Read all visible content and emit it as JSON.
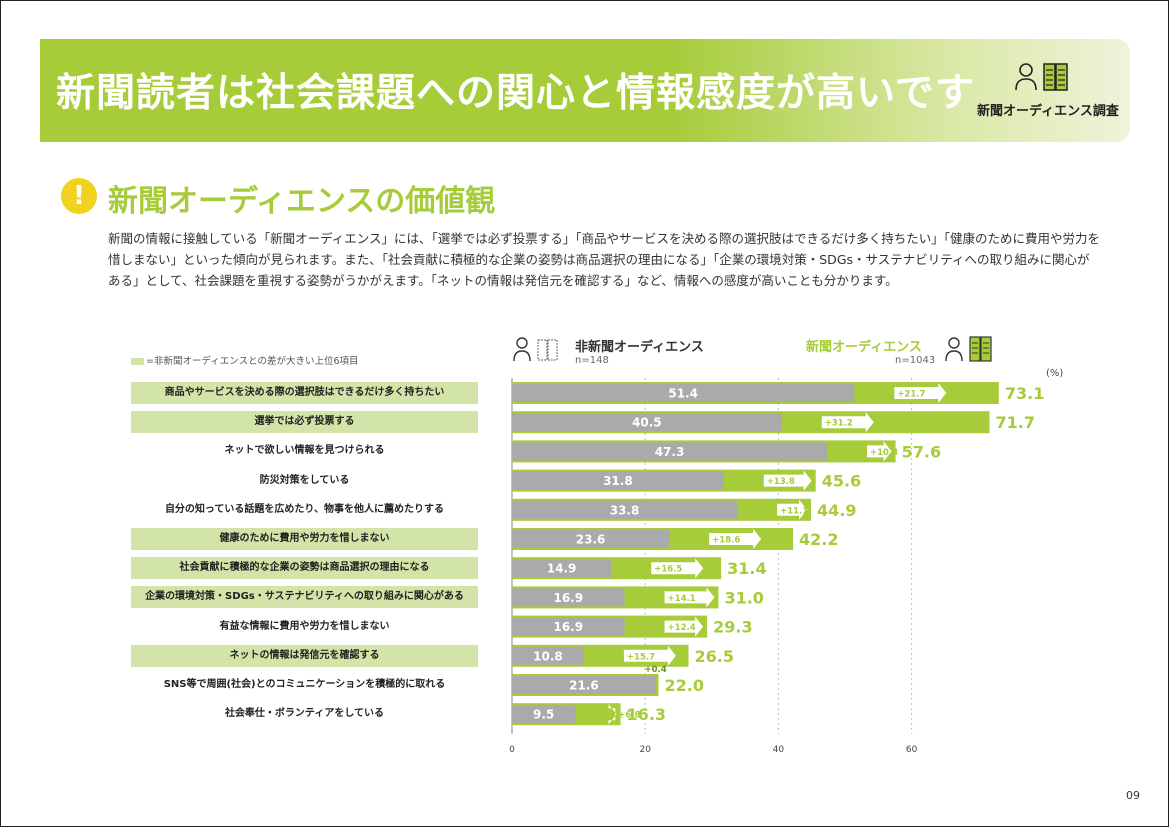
{
  "header": {
    "title": "新聞読者は社会課題への関心と情報感度が高いです",
    "brand_label": "新聞オーディエンス調査"
  },
  "section": {
    "title": "新聞オーディエンスの価値観",
    "description_lines": [
      "新聞の情報に接触している「新聞オーディエンス」には、「選挙では必ず投票する」「商品やサービスを決める際の選択肢はできるだけ多く持ちたい」「健康のために費用や労力を",
      "惜しまない」といった傾向が見られます。また、「社会貢献に積極的な企業の姿勢は商品選択の理由になる」「企業の環境対策・SDGs・サステナビリティへの取り組みに関心が",
      "ある」として、社会課題を重視する姿勢がうかがえます。「ネットの情報は発信元を確認する」など、情報への感度が高いことも分かります。"
    ]
  },
  "legend": {
    "note": "=非新聞オーディエンスとの差が大きい上位6項目",
    "unit": "(%)"
  },
  "colors": {
    "accent_green": "#a6cc3a",
    "bar_gray": "#aaaaaa",
    "highlight": "#d3e4a8",
    "title_yellow": "#f1d21e"
  },
  "chart_data": {
    "type": "bar",
    "orientation": "horizontal",
    "xlim": [
      0,
      75
    ],
    "xticks": [
      0,
      20,
      40,
      60
    ],
    "grid": true,
    "legend_position": "top",
    "series": [
      {
        "name": "非新聞オーディエンス",
        "n": "n=148",
        "values": [
          51.4,
          40.5,
          47.3,
          31.8,
          33.8,
          23.6,
          14.9,
          16.9,
          16.9,
          10.8,
          21.6,
          9.5
        ]
      },
      {
        "name": "新聞オーディエンス",
        "n": "n=1043",
        "values": [
          73.1,
          71.7,
          57.6,
          45.6,
          44.9,
          42.2,
          31.4,
          31.0,
          29.3,
          26.5,
          22.0,
          16.3
        ]
      }
    ],
    "categories": [
      "商品やサービスを決める際の選択肢はできるだけ多く持ちたい",
      "選挙では必ず投票する",
      "ネットで欲しい情報を見つけられる",
      "防災対策をしている",
      "自分の知っている話題を広めたり、物事を他人に薦めたりする",
      "健康のために費用や労力を惜しまない",
      "社会貢献に積極的な企業の姿勢は商品選択の理由になる",
      "企業の環境対策・SDGs・サステナビリティへの取り組みに関心がある",
      "有益な情報に費用や労力を惜しまない",
      "ネットの情報は発信元を確認する",
      "SNS等で周囲(社会)とのコミュニケーションを積極的に取れる",
      "社会奉仕・ボランティアをしている"
    ],
    "differences": [
      "+21.7",
      "+31.2",
      "+10.3",
      "+13.8",
      "+11.1",
      "+18.6",
      "+16.5",
      "+14.1",
      "+12.4",
      "+15.7",
      "+0.4",
      "+6.8"
    ],
    "highlighted": [
      true,
      true,
      false,
      false,
      false,
      true,
      true,
      true,
      false,
      true,
      false,
      false
    ]
  },
  "page_number": "09"
}
